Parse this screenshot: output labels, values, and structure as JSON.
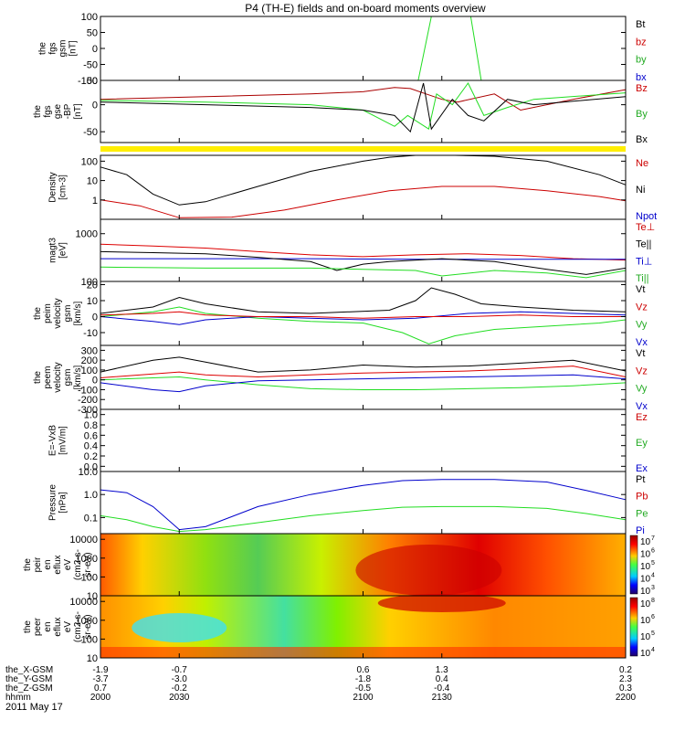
{
  "title": "P4 (TH-E) fields and on-board moments overview",
  "date_label": "2011 May 17",
  "colors": {
    "black": "#000000",
    "red": "#cc0000",
    "green": "#22dd22",
    "blue": "#0000cc",
    "yellow": "#ffee00"
  },
  "chart_data": [
    {
      "id": "fgs_gsm",
      "type": "line",
      "ylabel": [
        "the",
        "fgs",
        "gsm",
        "[nT]"
      ],
      "ylim": [
        -100,
        100
      ],
      "ticks": [
        "100",
        "50",
        "0",
        "-50",
        "-100"
      ],
      "tick_values": [
        100,
        50,
        0,
        -50,
        -100
      ],
      "legend": [
        {
          "label": "Bt",
          "color": "#000000"
        },
        {
          "label": "bz",
          "color": "#cc0000"
        },
        {
          "label": "by",
          "color": "#22aa22"
        },
        {
          "label": "bx",
          "color": "#0000cc"
        }
      ],
      "series": [
        {
          "name": "by",
          "color": "#22dd22",
          "x": [
            2000,
            2118,
            2121,
            2126,
            2127,
            2141,
            2145,
            2200
          ],
          "values": [
            null,
            null,
            -100,
            100,
            100,
            100,
            -100,
            null
          ]
        }
      ]
    },
    {
      "id": "fgs_gse",
      "type": "line",
      "ylabel": [
        "the",
        "fgs",
        "gse",
        "-BP",
        "[nT]"
      ],
      "ylim": [
        -70,
        45
      ],
      "ticks": [
        "50",
        "0",
        "-50"
      ],
      "tick_values": [
        50,
        0,
        -50
      ],
      "legend": [
        {
          "label": "Bz",
          "color": "#cc0000"
        },
        {
          "label": "By",
          "color": "#22aa22"
        },
        {
          "label": "Bx",
          "color": "#000000"
        }
      ],
      "series": [
        {
          "name": "Bz",
          "color": "#aa0000",
          "x": [
            2000,
            2040,
            2080,
            2100,
            2112,
            2118,
            2124,
            2130,
            2136,
            2150,
            2160,
            2180,
            2200
          ],
          "values": [
            10,
            15,
            20,
            24,
            32,
            30,
            20,
            10,
            5,
            20,
            -10,
            10,
            28
          ]
        },
        {
          "name": "By",
          "color": "#22dd22",
          "x": [
            2000,
            2040,
            2080,
            2100,
            2112,
            2117,
            2125,
            2128,
            2134,
            2140,
            2146,
            2155,
            2165,
            2200
          ],
          "values": [
            8,
            5,
            0,
            -10,
            -40,
            -20,
            -45,
            20,
            0,
            40,
            -20,
            -5,
            10,
            22
          ]
        },
        {
          "name": "Bx",
          "color": "#000000",
          "x": [
            2000,
            2040,
            2080,
            2100,
            2112,
            2118,
            2123,
            2126,
            2134,
            2140,
            2146,
            2155,
            2165,
            2200
          ],
          "values": [
            5,
            0,
            -5,
            -10,
            -20,
            -50,
            40,
            -45,
            10,
            -20,
            -30,
            10,
            0,
            15
          ]
        }
      ]
    },
    {
      "id": "density",
      "type": "line",
      "ylabel": [
        "Density",
        "[cm-3]"
      ],
      "scale": "log",
      "ylim": [
        0.1,
        200
      ],
      "ticks": [
        "100",
        "10",
        "1"
      ],
      "tick_values": [
        100,
        10,
        1
      ],
      "legend": [
        {
          "label": "Ne",
          "color": "#cc0000"
        },
        {
          "label": "Ni",
          "color": "#000000"
        },
        {
          "label": "Npot",
          "color": "#0000cc"
        }
      ],
      "series": [
        {
          "name": "Ni",
          "color": "#000000",
          "x": [
            2000,
            2010,
            2020,
            2030,
            2040,
            2060,
            2080,
            2100,
            2110,
            2120,
            2135,
            2150,
            2170,
            2190,
            2200
          ],
          "values": [
            50,
            20,
            2,
            0.55,
            0.8,
            5,
            30,
            100,
            160,
            220,
            220,
            180,
            100,
            20,
            6
          ]
        },
        {
          "name": "Ne",
          "color": "#cc0000",
          "x": [
            2000,
            2015,
            2030,
            2050,
            2070,
            2090,
            2110,
            2130,
            2150,
            2170,
            2190,
            2200
          ],
          "values": [
            1,
            0.5,
            0.12,
            0.13,
            0.3,
            1,
            3,
            5,
            5,
            3,
            1.5,
            0.9
          ]
        }
      ]
    },
    {
      "id": "temp",
      "type": "line",
      "ylabel": [
        "magt3",
        "[eV]"
      ],
      "scale": "log",
      "ylim": [
        100,
        2000
      ],
      "ticks": [
        "1000",
        "100"
      ],
      "tick_values": [
        1000,
        100
      ],
      "legend": [
        {
          "label": "Te⊥",
          "color": "#cc0000"
        },
        {
          "label": "Te||",
          "color": "#000000"
        },
        {
          "label": "Ti⊥",
          "color": "#0000cc"
        },
        {
          "label": "Ti||",
          "color": "#22aa22"
        }
      ],
      "series": [
        {
          "name": "Te_perp",
          "color": "#dd0000",
          "x": [
            2000,
            2020,
            2040,
            2060,
            2080,
            2100,
            2120,
            2140,
            2160,
            2180,
            2200
          ],
          "values": [
            600,
            550,
            500,
            420,
            360,
            330,
            360,
            380,
            350,
            300,
            280
          ]
        },
        {
          "name": "Ti_perp",
          "color": "#0000cc",
          "x": [
            2000,
            2040,
            2080,
            2120,
            2160,
            2200
          ],
          "values": [
            300,
            300,
            300,
            290,
            290,
            290
          ]
        },
        {
          "name": "Te_par",
          "color": "#000000",
          "x": [
            2000,
            2020,
            2040,
            2060,
            2080,
            2090,
            2100,
            2110,
            2130,
            2150,
            2170,
            2185,
            2200
          ],
          "values": [
            420,
            400,
            380,
            320,
            260,
            170,
            230,
            260,
            300,
            260,
            180,
            140,
            190
          ]
        },
        {
          "name": "Ti_par",
          "color": "#22dd22",
          "x": [
            2000,
            2040,
            2080,
            2100,
            2120,
            2130,
            2150,
            2170,
            2185,
            2200
          ],
          "values": [
            200,
            190,
            190,
            180,
            170,
            130,
            170,
            150,
            120,
            170
          ]
        }
      ]
    },
    {
      "id": "vel1",
      "type": "line",
      "ylabel": [
        "the",
        "peim",
        "velocity",
        "gsm",
        "[km/s]"
      ],
      "ylim": [
        -18,
        22
      ],
      "ticks": [
        "20",
        "10",
        "0",
        "-10"
      ],
      "tick_values": [
        20,
        10,
        0,
        -10
      ],
      "legend": [
        {
          "label": "Vt",
          "color": "#000000"
        },
        {
          "label": "Vz",
          "color": "#cc0000"
        },
        {
          "label": "Vy",
          "color": "#22aa22"
        },
        {
          "label": "Vx",
          "color": "#0000cc"
        }
      ],
      "series": [
        {
          "name": "Vt",
          "color": "#000000",
          "x": [
            2000,
            2020,
            2030,
            2040,
            2060,
            2080,
            2110,
            2120,
            2126,
            2135,
            2145,
            2160,
            2180,
            2200
          ],
          "values": [
            2,
            6,
            12,
            8,
            3,
            2,
            4,
            10,
            18,
            14,
            8,
            6,
            4,
            3
          ]
        },
        {
          "name": "Vy",
          "color": "#22dd22",
          "x": [
            2000,
            2020,
            2030,
            2040,
            2060,
            2080,
            2100,
            2115,
            2125,
            2135,
            2150,
            2170,
            2190,
            2200
          ],
          "values": [
            0,
            3,
            6,
            2,
            -1,
            -3,
            -4,
            -10,
            -17,
            -12,
            -8,
            -6,
            -4,
            -2
          ]
        },
        {
          "name": "Vx",
          "color": "#0000cc",
          "x": [
            2000,
            2020,
            2030,
            2040,
            2060,
            2080,
            2100,
            2120,
            2140,
            2160,
            2180,
            2200
          ],
          "values": [
            0,
            -3,
            -5,
            -2,
            0,
            -1,
            -2,
            -1,
            2,
            3,
            2,
            1
          ]
        },
        {
          "name": "Vz",
          "color": "#dd0000",
          "x": [
            2000,
            2020,
            2030,
            2040,
            2060,
            2080,
            2100,
            2120,
            2140,
            2160,
            2180,
            2200
          ],
          "values": [
            1,
            2,
            3,
            1,
            0,
            0,
            -1,
            0,
            0,
            1,
            0,
            0
          ]
        }
      ]
    },
    {
      "id": "vel2",
      "type": "line",
      "ylabel": [
        "the",
        "peem",
        "velocity",
        "gsm",
        "[km/s]"
      ],
      "ylim": [
        -300,
        350
      ],
      "ticks": [
        "300",
        "200",
        "100",
        "0",
        "-100",
        "-200",
        "-300"
      ],
      "tick_values": [
        300,
        200,
        100,
        0,
        -100,
        -200,
        -300
      ],
      "legend": [
        {
          "label": "Vt",
          "color": "#000000"
        },
        {
          "label": "Vz",
          "color": "#cc0000"
        },
        {
          "label": "Vy",
          "color": "#22aa22"
        },
        {
          "label": "Vx",
          "color": "#0000cc"
        }
      ],
      "series": [
        {
          "name": "Vt",
          "color": "#000000",
          "x": [
            2000,
            2020,
            2030,
            2040,
            2060,
            2080,
            2100,
            2120,
            2140,
            2160,
            2180,
            2200
          ],
          "values": [
            80,
            200,
            230,
            180,
            80,
            100,
            150,
            130,
            140,
            170,
            200,
            90
          ]
        },
        {
          "name": "Vz",
          "color": "#dd0000",
          "x": [
            2000,
            2020,
            2030,
            2040,
            2060,
            2080,
            2100,
            2120,
            2140,
            2160,
            2180,
            2200
          ],
          "values": [
            20,
            60,
            80,
            50,
            30,
            50,
            70,
            80,
            90,
            110,
            140,
            30
          ]
        },
        {
          "name": "Vy",
          "color": "#22dd22",
          "x": [
            2000,
            2020,
            2030,
            2040,
            2060,
            2080,
            2100,
            2120,
            2140,
            2160,
            2180,
            2200
          ],
          "values": [
            0,
            20,
            30,
            0,
            -50,
            -90,
            -100,
            -100,
            -90,
            -80,
            -60,
            -30
          ]
        },
        {
          "name": "Vx",
          "color": "#0000cc",
          "x": [
            2000,
            2020,
            2030,
            2040,
            2060,
            2080,
            2100,
            2120,
            2140,
            2160,
            2180,
            2200
          ],
          "values": [
            -30,
            -100,
            -120,
            -60,
            -10,
            0,
            10,
            20,
            30,
            40,
            50,
            10
          ]
        }
      ]
    },
    {
      "id": "efield",
      "type": "line",
      "ylabel": [
        "E=-VxB",
        "[mV/m]"
      ],
      "ylim": [
        -0.1,
        1.1
      ],
      "ticks": [
        "1.0",
        "0.8",
        "0.6",
        "0.4",
        "0.2",
        "0.0"
      ],
      "tick_values": [
        1.0,
        0.8,
        0.6,
        0.4,
        0.2,
        0.0
      ],
      "legend": [
        {
          "label": "Ez",
          "color": "#cc0000"
        },
        {
          "label": "Ey",
          "color": "#22aa22"
        },
        {
          "label": "Ex",
          "color": "#0000cc"
        }
      ],
      "series": []
    },
    {
      "id": "pressure",
      "type": "line",
      "ylabel": [
        "Pressure",
        "[nPa]"
      ],
      "scale": "log",
      "ylim": [
        0.02,
        10
      ],
      "ticks": [
        "10.0",
        "1.0",
        "0.1"
      ],
      "tick_values": [
        10,
        1,
        0.1
      ],
      "legend": [
        {
          "label": "Pt",
          "color": "#000000"
        },
        {
          "label": "Pb",
          "color": "#cc0000"
        },
        {
          "label": "Pe",
          "color": "#22aa22"
        },
        {
          "label": "Pi",
          "color": "#0000cc"
        }
      ],
      "series": [
        {
          "name": "Pi",
          "color": "#0000cc",
          "x": [
            2000,
            2010,
            2020,
            2030,
            2040,
            2060,
            2080,
            2100,
            2115,
            2130,
            2150,
            2170,
            2185,
            2200
          ],
          "values": [
            1.6,
            1.2,
            0.3,
            0.03,
            0.04,
            0.3,
            1,
            2.5,
            4,
            4.5,
            4.5,
            3.5,
            1.5,
            0.6
          ]
        },
        {
          "name": "Pe",
          "color": "#22dd22",
          "x": [
            2000,
            2010,
            2020,
            2030,
            2040,
            2060,
            2080,
            2100,
            2115,
            2130,
            2150,
            2170,
            2185,
            2200
          ],
          "values": [
            0.12,
            0.08,
            0.04,
            0.025,
            0.03,
            0.06,
            0.12,
            0.2,
            0.28,
            0.3,
            0.3,
            0.25,
            0.15,
            0.08
          ]
        }
      ]
    },
    {
      "id": "peir_eflux",
      "type": "heatmap",
      "ylabel": [
        "the",
        "peir",
        "en",
        "eflux",
        "eV",
        "(cm2-s-",
        "sr-eV)"
      ],
      "ticks": [
        "10000",
        "1000",
        "100",
        "10"
      ],
      "tick_values": [
        10000,
        1000,
        100,
        10
      ],
      "colorbar_ticks": [
        "10",
        "10",
        "10",
        "10",
        "10"
      ],
      "colorbar_exponents": [
        "7",
        "6",
        "5",
        "4",
        "3"
      ]
    },
    {
      "id": "peer_eflux",
      "type": "heatmap",
      "ylabel": [
        "the",
        "peer",
        "en",
        "eflux",
        "eV",
        "(cm2-s-",
        "sr-eV)"
      ],
      "ticks": [
        "10000",
        "1000",
        "100",
        "10"
      ],
      "tick_values": [
        10000,
        1000,
        100,
        10
      ],
      "colorbar_ticks": [
        "10",
        "10",
        "10",
        "10"
      ],
      "colorbar_exponents": [
        "8",
        "6",
        "5",
        "4"
      ]
    }
  ],
  "xaxis": {
    "rows": [
      {
        "label": "the_X-GSM",
        "values": [
          "-1.9",
          "-0.7",
          "0.6",
          "1.3",
          "0.2"
        ]
      },
      {
        "label": "the_Y-GSM",
        "values": [
          "-3.7",
          "-3.0",
          "-1.8",
          "0.4",
          "2.3"
        ]
      },
      {
        "label": "the_Z-GSM",
        "values": [
          "0.7",
          "-0.2",
          "-0.5",
          "-0.4",
          "0.3"
        ]
      },
      {
        "label": "hhmm",
        "values": [
          "2000",
          "2030",
          "2100",
          "2130",
          "2200"
        ]
      }
    ],
    "tick_times": [
      2000,
      2030,
      2100,
      2130,
      2200
    ]
  }
}
